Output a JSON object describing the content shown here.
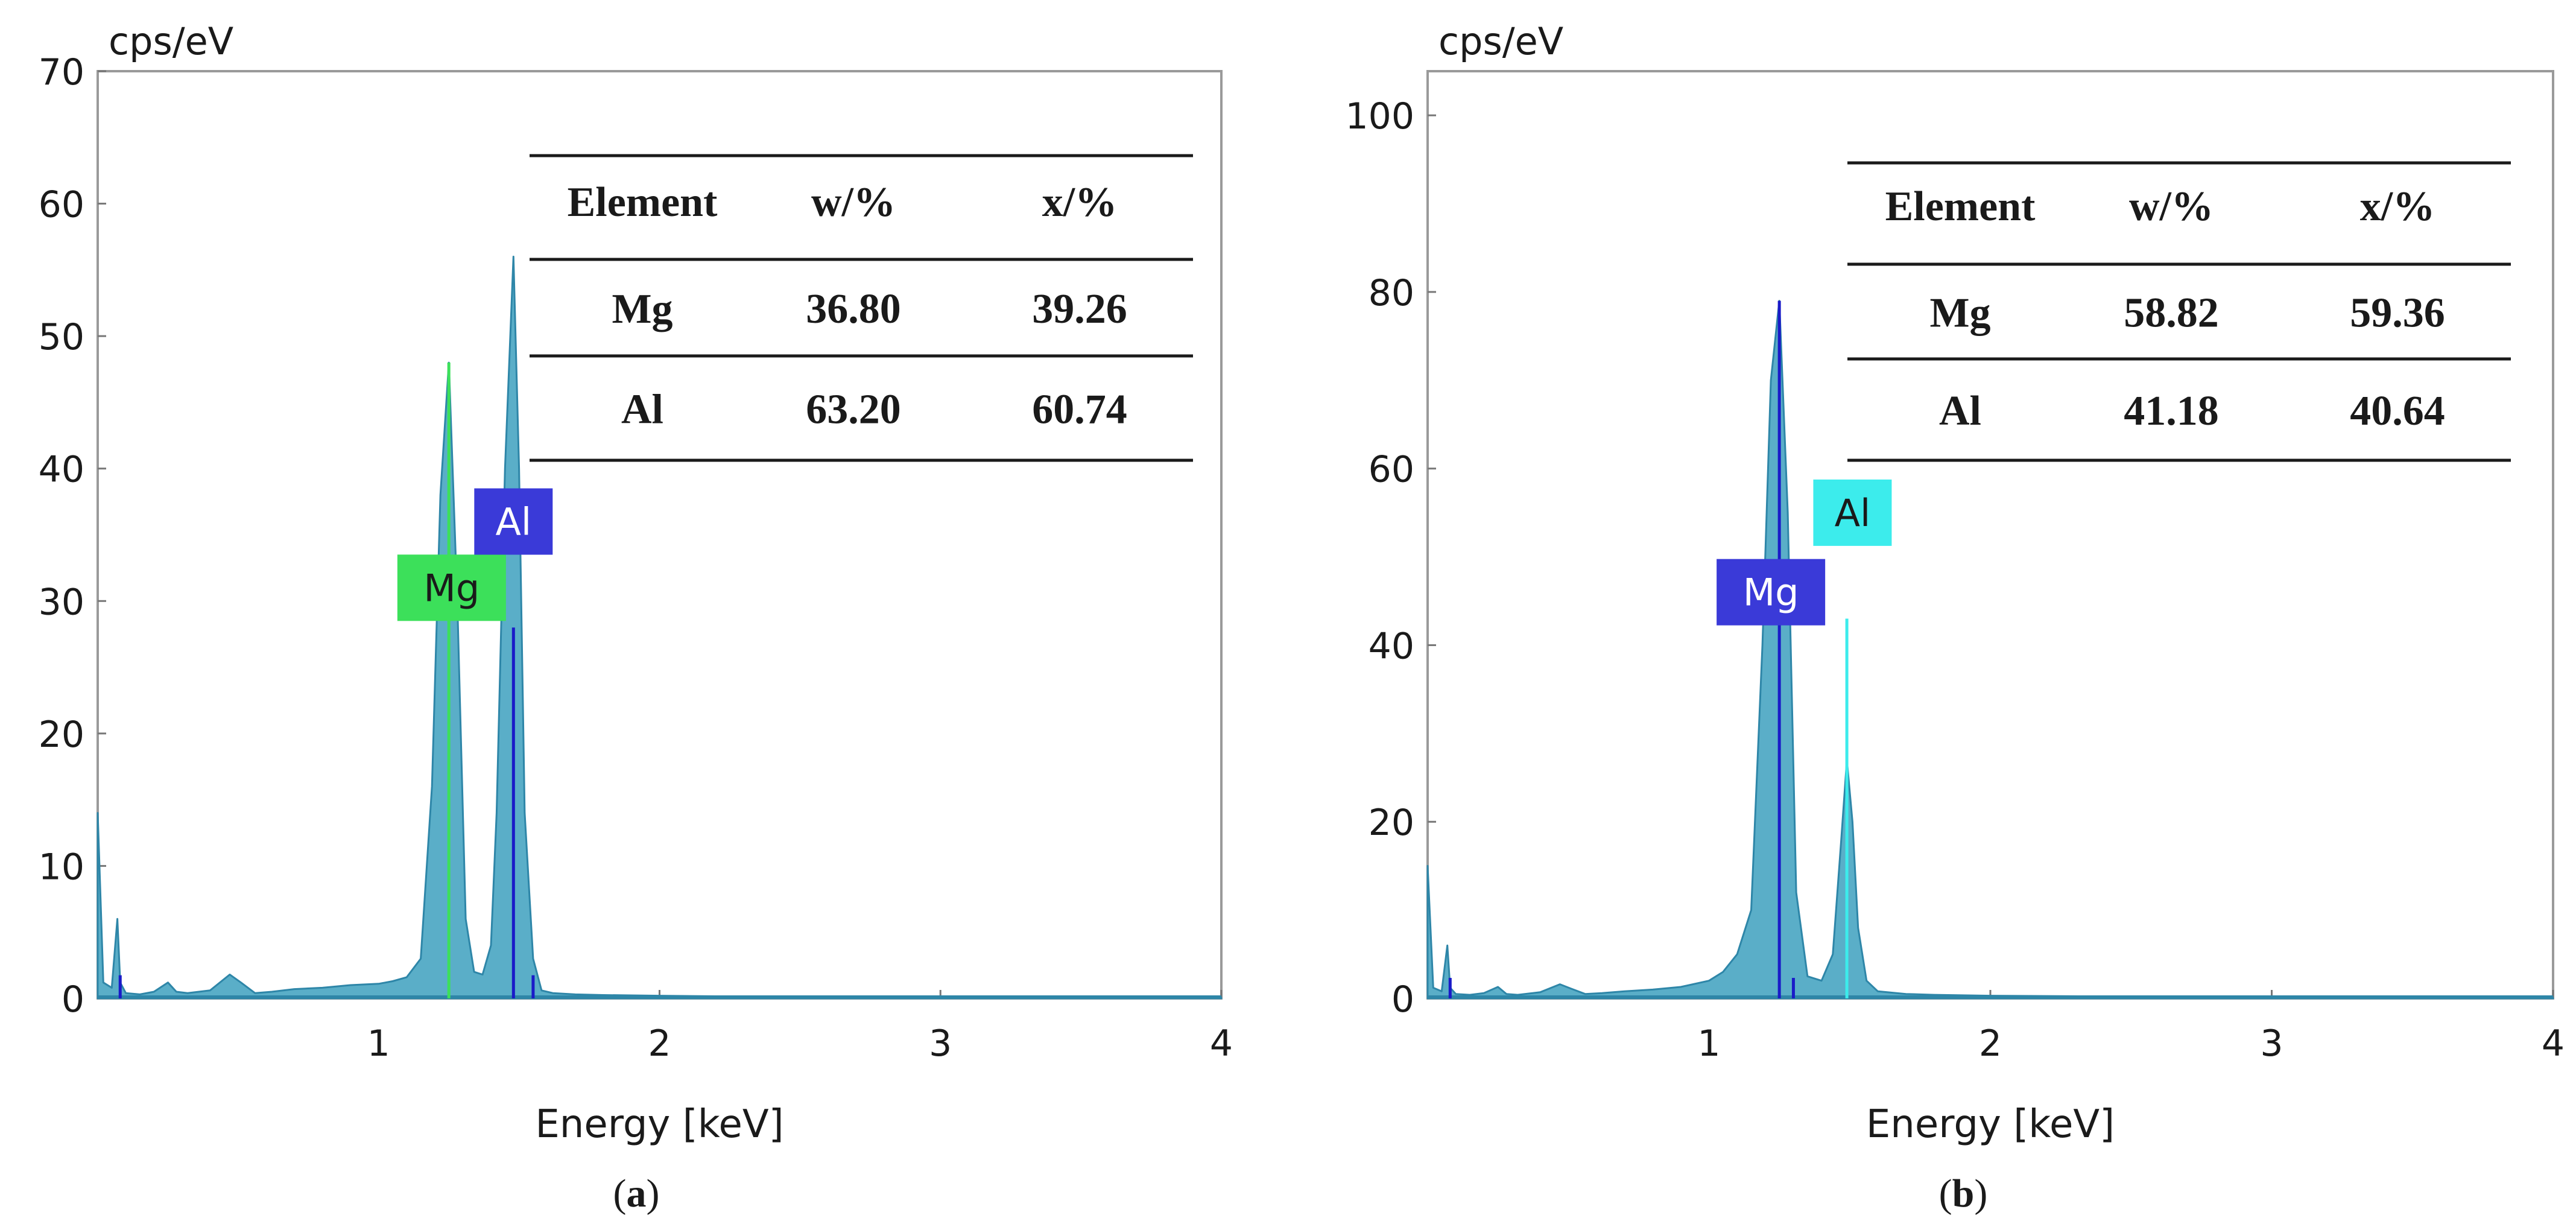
{
  "colors": {
    "spectrum_fill": "#5aaec8",
    "spectrum_stroke": "#2e86a8",
    "mg_tag_a": "#3ce05a",
    "al_tag_a": "#3a3ad8",
    "mg_tag_b": "#3a3ad8",
    "al_tag_b": "#3cecec"
  },
  "chart_data": [
    {
      "type": "area",
      "panel_label": "a",
      "ylabel": "cps/eV",
      "xlabel": "Energy [keV]",
      "xlim": [
        0,
        4
      ],
      "ylim": [
        0,
        70
      ],
      "xticks": [
        1,
        2,
        3,
        4
      ],
      "yticks": [
        0,
        10,
        20,
        30,
        40,
        50,
        60,
        70
      ],
      "series": [
        {
          "name": "spectrum",
          "x": [
            0,
            0.02,
            0.05,
            0.07,
            0.08,
            0.1,
            0.15,
            0.2,
            0.25,
            0.28,
            0.32,
            0.4,
            0.47,
            0.51,
            0.56,
            0.62,
            0.7,
            0.8,
            0.9,
            1.0,
            1.05,
            1.1,
            1.15,
            1.19,
            1.22,
            1.25,
            1.28,
            1.31,
            1.34,
            1.37,
            1.4,
            1.42,
            1.45,
            1.48,
            1.5,
            1.52,
            1.55,
            1.58,
            1.62,
            1.7,
            1.8,
            2.0,
            2.5,
            3.0,
            3.5,
            4.0
          ],
          "y": [
            14,
            1.2,
            0.8,
            6,
            1.2,
            0.4,
            0.3,
            0.5,
            1.2,
            0.5,
            0.4,
            0.6,
            1.8,
            1.2,
            0.4,
            0.5,
            0.7,
            0.8,
            1.0,
            1.1,
            1.3,
            1.6,
            3,
            16,
            38,
            48,
            30,
            6,
            2,
            1.8,
            4,
            14,
            40,
            56,
            40,
            14,
            3,
            0.6,
            0.4,
            0.3,
            0.25,
            0.2,
            0.1,
            0.05,
            0.05,
            0.05
          ]
        }
      ],
      "element_lines": [
        {
          "element": "Mg",
          "energy": 1.25,
          "height": 48
        },
        {
          "element": "Al",
          "energy": 1.48,
          "height": 28
        }
      ],
      "minor_marks": [
        {
          "energy": 0.08,
          "height": 1.2
        },
        {
          "energy": 1.55,
          "height": 1.2
        }
      ],
      "labels": [
        {
          "text": "Mg",
          "energy": 1.26,
          "value": 31
        },
        {
          "text": "Al",
          "energy": 1.48,
          "value": 36
        }
      ],
      "table": {
        "headers": [
          "Element",
          "w/%",
          "x/%"
        ],
        "rows": [
          [
            "Mg",
            "36.80",
            "39.26"
          ],
          [
            "Al",
            "63.20",
            "60.74"
          ]
        ]
      }
    },
    {
      "type": "area",
      "panel_label": "b",
      "ylabel": "cps/eV",
      "xlabel": "Energy [keV]",
      "xlim": [
        0,
        4
      ],
      "ylim": [
        0,
        105
      ],
      "xticks": [
        1,
        2,
        3,
        4
      ],
      "yticks": [
        0,
        20,
        40,
        60,
        80,
        100
      ],
      "series": [
        {
          "name": "spectrum",
          "x": [
            0,
            0.02,
            0.05,
            0.07,
            0.08,
            0.1,
            0.15,
            0.2,
            0.25,
            0.28,
            0.32,
            0.4,
            0.47,
            0.51,
            0.56,
            0.62,
            0.7,
            0.8,
            0.9,
            1.0,
            1.05,
            1.1,
            1.15,
            1.19,
            1.22,
            1.25,
            1.28,
            1.31,
            1.35,
            1.4,
            1.44,
            1.47,
            1.49,
            1.51,
            1.53,
            1.56,
            1.6,
            1.7,
            1.8,
            2.0,
            2.5,
            3.0,
            3.5,
            4.0
          ],
          "y": [
            15,
            1.2,
            0.8,
            6,
            1.2,
            0.5,
            0.4,
            0.6,
            1.3,
            0.5,
            0.4,
            0.7,
            1.6,
            1.1,
            0.5,
            0.6,
            0.8,
            1.0,
            1.3,
            2,
            3,
            5,
            10,
            40,
            70,
            79,
            55,
            12,
            2.5,
            2,
            5,
            18,
            27,
            20,
            8,
            2,
            0.8,
            0.5,
            0.4,
            0.3,
            0.2,
            0.1,
            0.05,
            0.05
          ]
        }
      ],
      "element_lines": [
        {
          "element": "Mg",
          "energy": 1.25,
          "height": 79
        },
        {
          "element": "Al",
          "energy": 1.49,
          "height": 43
        }
      ],
      "minor_marks": [
        {
          "energy": 0.08,
          "height": 1.5
        },
        {
          "energy": 1.3,
          "height": 1.5
        }
      ],
      "labels": [
        {
          "text": "Mg",
          "energy": 1.22,
          "value": 46
        },
        {
          "text": "Al",
          "energy": 1.51,
          "value": 55
        }
      ],
      "table": {
        "headers": [
          "Element",
          "w/%",
          "x/%"
        ],
        "rows": [
          [
            "Mg",
            "58.82",
            "59.36"
          ],
          [
            "Al",
            "41.18",
            "40.64"
          ]
        ]
      }
    }
  ]
}
